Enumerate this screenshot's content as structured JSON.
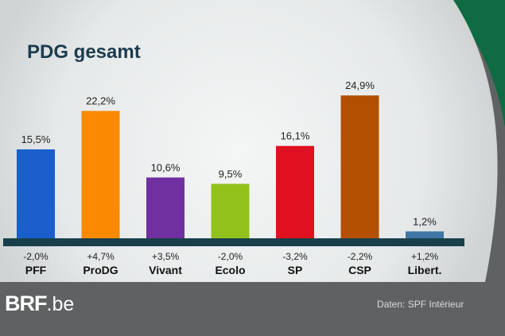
{
  "colors": {
    "page_bg": "#5f6163",
    "panel_bg": "#e9ecec",
    "axis": "#17404a",
    "accent_green": "#0e6b44",
    "title": "#1c3c4e"
  },
  "brand": {
    "logo_bold": "BRF",
    "logo_suffix": ".be"
  },
  "footer": {
    "source": "Daten: SPF Intérieur"
  },
  "chart_data": {
    "type": "bar",
    "title": "PDG gesamt",
    "xlabel": "",
    "ylabel": "",
    "ylim": [
      0,
      27
    ],
    "grid": false,
    "legend": "none",
    "categories": [
      "PFF",
      "ProDG",
      "Vivant",
      "Ecolo",
      "SP",
      "CSP",
      "Libert."
    ],
    "values": [
      15.5,
      22.2,
      10.6,
      9.5,
      16.1,
      24.9,
      1.2
    ],
    "value_labels": [
      "15,5%",
      "22,2%",
      "10,6%",
      "9,5%",
      "16,1%",
      "24,9%",
      "1,2%"
    ],
    "changes": [
      "-2,0%",
      "+4,7%",
      "+3,5%",
      "-2,0%",
      "-3,2%",
      "-2,2%",
      "+1,2%"
    ],
    "colors": [
      "#1a5fcc",
      "#f98a00",
      "#7030a0",
      "#92c11c",
      "#e11020",
      "#b34f00",
      "#3f76a6"
    ]
  }
}
